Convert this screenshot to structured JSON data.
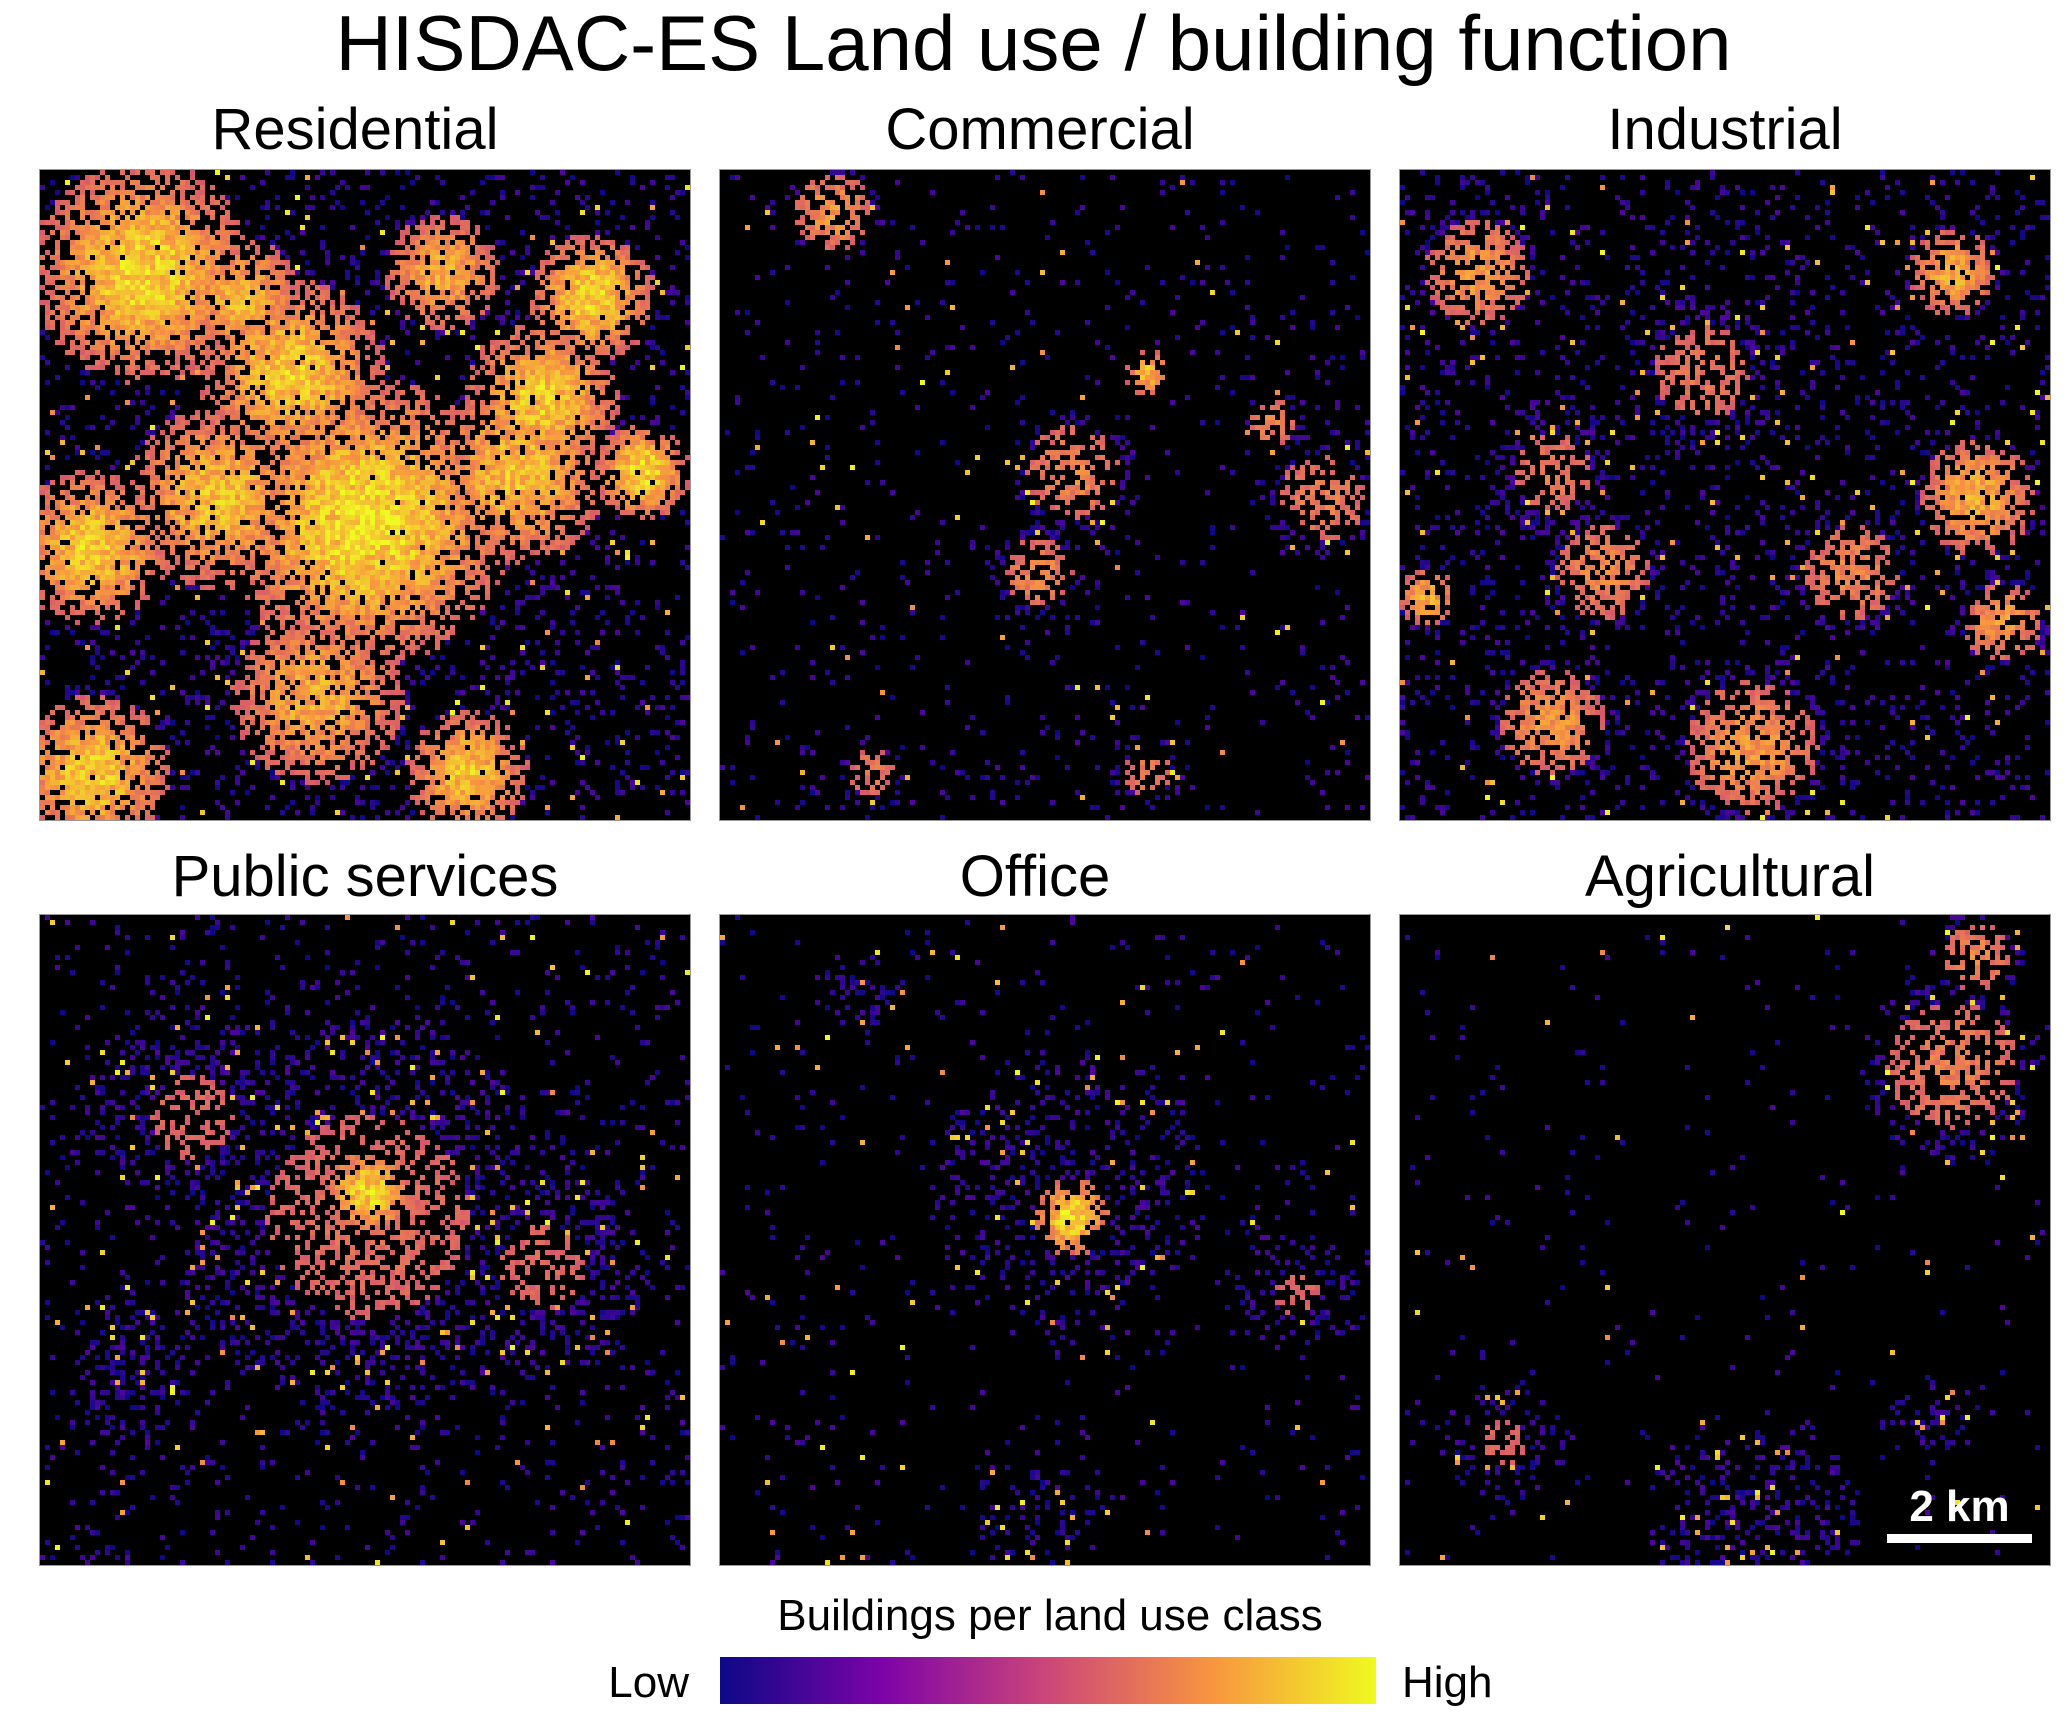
{
  "title": "HISDAC-ES Land use / building function",
  "panels": [
    {
      "name": "Residential",
      "density": 0.55,
      "hotspots": "many large urban clusters"
    },
    {
      "name": "Commercial",
      "density": 0.12,
      "hotspots": "sparse scattered, central cluster"
    },
    {
      "name": "Industrial",
      "density": 0.3,
      "hotspots": "scattered with edge clusters"
    },
    {
      "name": "Public services",
      "density": 0.18,
      "hotspots": "scattered with central cluster"
    },
    {
      "name": "Office",
      "density": 0.08,
      "hotspots": "sparse with central cluster"
    },
    {
      "name": "Agricultural",
      "density": 0.06,
      "hotspots": "sparse, top-right and bottom clusters"
    }
  ],
  "scalebar": {
    "label": "2 km"
  },
  "legend": {
    "title": "Buildings per land use class",
    "low_label": "Low",
    "high_label": "High",
    "colormap": [
      "#0d0887",
      "#7e03a8",
      "#cc4778",
      "#f89540",
      "#f0f921"
    ]
  }
}
